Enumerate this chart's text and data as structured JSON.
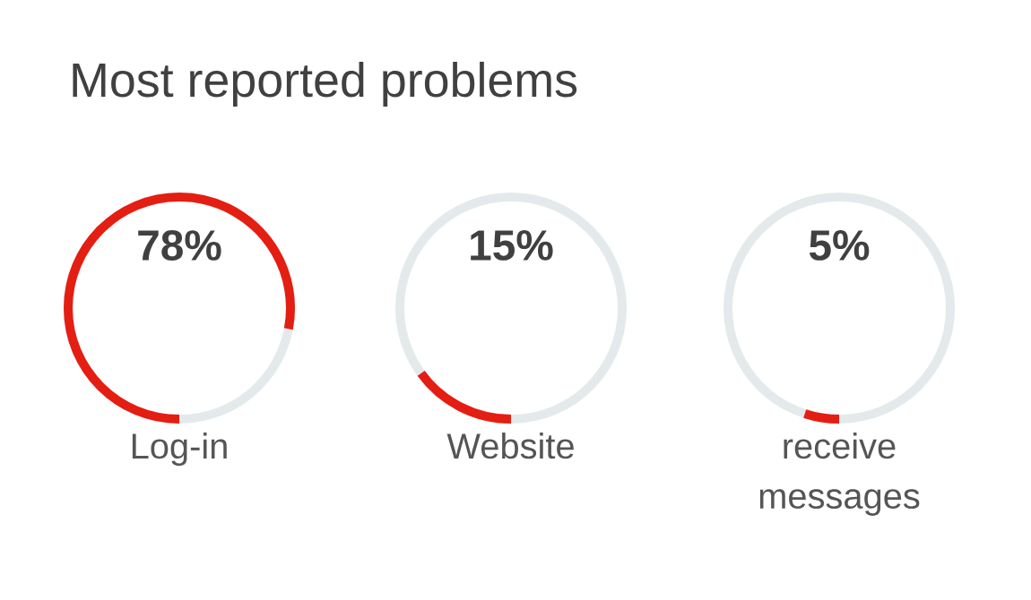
{
  "chart_data": {
    "type": "other",
    "title": "Most reported problems",
    "categories": [
      "Log-in",
      "Website",
      "receive messages"
    ],
    "values": [
      78,
      15,
      5
    ],
    "value_labels": [
      "78%",
      "15%",
      "5%"
    ],
    "color": "#e41e12"
  }
}
